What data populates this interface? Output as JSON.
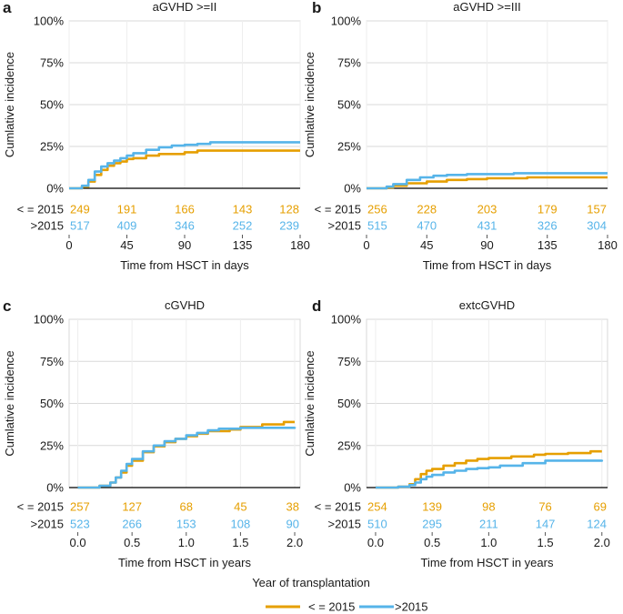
{
  "colors": {
    "series_le2015": "#E69F00",
    "series_gt2015": "#56B4E9",
    "grid": "#d9d9d9",
    "axis": "#000000",
    "text": "#1a1a1a"
  },
  "legend": {
    "title": "Year of transplantation",
    "items": [
      "< = 2015",
      ">2015"
    ]
  },
  "chart_data": [
    {
      "panel": "a",
      "type": "line",
      "title": "aGVHD >=II",
      "xlabel": "Time from HSCT in days",
      "ylabel": "Cumlative incidence",
      "xlim": [
        0,
        180
      ],
      "ylim": [
        0,
        1
      ],
      "xticks": [
        0,
        45,
        90,
        135,
        180
      ],
      "xtick_labels": [
        "0",
        "45",
        "90",
        "135",
        "180"
      ],
      "yticks": [
        0,
        0.25,
        0.5,
        0.75,
        1
      ],
      "ytick_labels": [
        "0%",
        "25%",
        "50%",
        "75%",
        "100%"
      ],
      "series": [
        {
          "name": "< = 2015",
          "x": [
            0,
            10,
            15,
            20,
            25,
            30,
            35,
            40,
            45,
            50,
            60,
            70,
            90,
            100,
            180
          ],
          "y": [
            0,
            0.01,
            0.04,
            0.08,
            0.11,
            0.135,
            0.15,
            0.16,
            0.175,
            0.18,
            0.195,
            0.205,
            0.215,
            0.225,
            0.225
          ]
        },
        {
          "name": ">2015",
          "x": [
            0,
            10,
            15,
            20,
            25,
            30,
            35,
            40,
            45,
            50,
            60,
            70,
            80,
            90,
            100,
            110,
            180
          ],
          "y": [
            0,
            0.015,
            0.05,
            0.1,
            0.13,
            0.15,
            0.165,
            0.18,
            0.195,
            0.21,
            0.23,
            0.245,
            0.255,
            0.26,
            0.265,
            0.275,
            0.275
          ]
        }
      ],
      "risk_table": {
        "rows": [
          {
            "label": "< = 2015",
            "values": [
              "249",
              "191",
              "166",
              "143",
              "128"
            ]
          },
          {
            "label": ">2015",
            "values": [
              "517",
              "409",
              "346",
              "252",
              "239"
            ]
          }
        ]
      }
    },
    {
      "panel": "b",
      "type": "line",
      "title": "aGVHD >=III",
      "xlabel": "Time from HSCT in days",
      "ylabel": "Cumlative incidence",
      "xlim": [
        0,
        180
      ],
      "ylim": [
        0,
        1
      ],
      "xticks": [
        0,
        45,
        90,
        135,
        180
      ],
      "xtick_labels": [
        "0",
        "45",
        "90",
        "135",
        "180"
      ],
      "yticks": [
        0,
        0.25,
        0.5,
        0.75,
        1
      ],
      "ytick_labels": [
        "0%",
        "25%",
        "50%",
        "75%",
        "100%"
      ],
      "series": [
        {
          "name": "< = 2015",
          "x": [
            0,
            15,
            20,
            30,
            45,
            60,
            75,
            90,
            120,
            180
          ],
          "y": [
            0,
            0.005,
            0.015,
            0.03,
            0.04,
            0.05,
            0.055,
            0.06,
            0.065,
            0.065
          ]
        },
        {
          "name": ">2015",
          "x": [
            0,
            15,
            20,
            30,
            40,
            50,
            60,
            75,
            90,
            110,
            180
          ],
          "y": [
            0,
            0.01,
            0.025,
            0.05,
            0.065,
            0.075,
            0.08,
            0.085,
            0.085,
            0.09,
            0.09
          ]
        }
      ],
      "risk_table": {
        "rows": [
          {
            "label": "< = 2015",
            "values": [
              "256",
              "228",
              "203",
              "179",
              "157"
            ]
          },
          {
            "label": ">2015",
            "values": [
              "515",
              "470",
              "431",
              "326",
              "304"
            ]
          }
        ]
      }
    },
    {
      "panel": "c",
      "type": "line",
      "title": "cGVHD",
      "xlabel": "Time from HSCT in years",
      "ylabel": "Cumlative incidence",
      "xlim": [
        -0.08,
        2.05
      ],
      "ylim": [
        0,
        1
      ],
      "xticks": [
        0,
        0.5,
        1,
        1.5,
        2
      ],
      "xtick_labels": [
        "0.0",
        "0.5",
        "1.0",
        "1.5",
        "2.0"
      ],
      "yticks": [
        0,
        0.25,
        0.5,
        0.75,
        1
      ],
      "ytick_labels": [
        "0%",
        "25%",
        "50%",
        "75%",
        "100%"
      ],
      "series": [
        {
          "name": "< = 2015",
          "x": [
            0,
            0.2,
            0.3,
            0.35,
            0.4,
            0.45,
            0.5,
            0.6,
            0.7,
            0.8,
            0.9,
            1.0,
            1.1,
            1.2,
            1.4,
            1.5,
            1.7,
            1.9,
            2.0
          ],
          "y": [
            0,
            0.01,
            0.03,
            0.06,
            0.09,
            0.13,
            0.16,
            0.21,
            0.245,
            0.27,
            0.29,
            0.305,
            0.32,
            0.335,
            0.345,
            0.36,
            0.375,
            0.39,
            0.39
          ]
        },
        {
          "name": ">2015",
          "x": [
            0,
            0.2,
            0.3,
            0.35,
            0.4,
            0.45,
            0.5,
            0.6,
            0.7,
            0.8,
            0.9,
            1.0,
            1.1,
            1.2,
            1.3,
            1.5,
            2.0
          ],
          "y": [
            0,
            0.01,
            0.03,
            0.06,
            0.1,
            0.14,
            0.17,
            0.215,
            0.25,
            0.275,
            0.29,
            0.31,
            0.325,
            0.34,
            0.35,
            0.355,
            0.36
          ]
        }
      ],
      "risk_table": {
        "rows": [
          {
            "label": "< = 2015",
            "values": [
              "257",
              "127",
              "68",
              "45",
              "38"
            ]
          },
          {
            "label": ">2015",
            "values": [
              "523",
              "266",
              "153",
              "108",
              "90"
            ]
          }
        ]
      }
    },
    {
      "panel": "d",
      "type": "line",
      "title": "extcGVHD",
      "xlabel": "Time from HSCT in years",
      "ylabel": "Cumlative incidence",
      "xlim": [
        -0.08,
        2.05
      ],
      "ylim": [
        0,
        1
      ],
      "xticks": [
        0,
        0.5,
        1,
        1.5,
        2
      ],
      "xtick_labels": [
        "0.0",
        "0.5",
        "1.0",
        "1.5",
        "2.0"
      ],
      "yticks": [
        0,
        0.25,
        0.5,
        0.75,
        1
      ],
      "ytick_labels": [
        "0%",
        "25%",
        "50%",
        "75%",
        "100%"
      ],
      "series": [
        {
          "name": "< = 2015",
          "x": [
            0,
            0.2,
            0.3,
            0.35,
            0.4,
            0.45,
            0.5,
            0.6,
            0.7,
            0.8,
            0.9,
            1.0,
            1.2,
            1.4,
            1.5,
            1.7,
            1.9,
            2.0
          ],
          "y": [
            0,
            0.005,
            0.02,
            0.05,
            0.08,
            0.1,
            0.11,
            0.13,
            0.145,
            0.16,
            0.17,
            0.175,
            0.185,
            0.195,
            0.2,
            0.205,
            0.215,
            0.215
          ]
        },
        {
          "name": ">2015",
          "x": [
            0,
            0.2,
            0.3,
            0.35,
            0.4,
            0.45,
            0.5,
            0.6,
            0.7,
            0.8,
            0.9,
            1.0,
            1.1,
            1.3,
            1.5,
            1.9,
            2.0
          ],
          "y": [
            0,
            0.005,
            0.015,
            0.03,
            0.05,
            0.065,
            0.075,
            0.09,
            0.1,
            0.11,
            0.115,
            0.12,
            0.13,
            0.145,
            0.16,
            0.16,
            0.165
          ]
        }
      ],
      "risk_table": {
        "rows": [
          {
            "label": "< = 2015",
            "values": [
              "254",
              "139",
              "98",
              "76",
              "69"
            ]
          },
          {
            "label": ">2015",
            "values": [
              "510",
              "295",
              "211",
              "147",
              "124"
            ]
          }
        ]
      }
    }
  ]
}
